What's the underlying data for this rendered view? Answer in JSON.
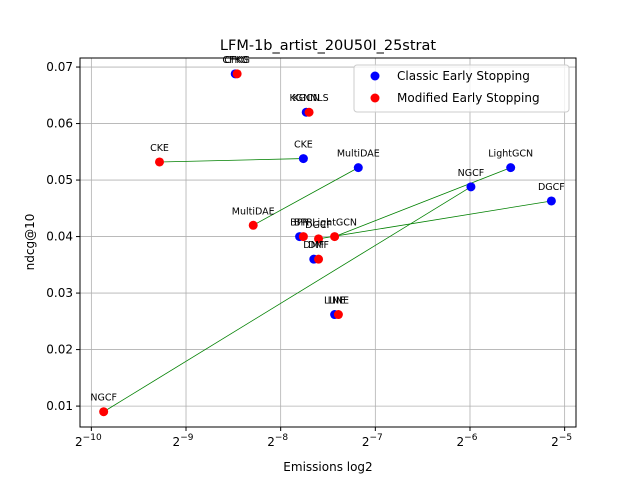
{
  "chart_data": {
    "type": "scatter",
    "title": "LFM-1b_artist_20U50I_25strat",
    "xlabel": "Emissions log2",
    "ylabel": "ndcg@10",
    "xscale": "log2",
    "xlim_exponent": [
      -10.12,
      -4.88
    ],
    "ylim": [
      0.0063,
      0.0716
    ],
    "grid": true,
    "legend_position": "top-right",
    "x_ticks": [
      {
        "base": "2",
        "exp": "−10",
        "value": -10
      },
      {
        "base": "2",
        "exp": "−9",
        "value": -9
      },
      {
        "base": "2",
        "exp": "−8",
        "value": -8
      },
      {
        "base": "2",
        "exp": "−7",
        "value": -7
      },
      {
        "base": "2",
        "exp": "−6",
        "value": -6
      },
      {
        "base": "2",
        "exp": "−5",
        "value": -5
      }
    ],
    "y_ticks": [
      {
        "label": "0.01",
        "value": 0.01
      },
      {
        "label": "0.02",
        "value": 0.02
      },
      {
        "label": "0.03",
        "value": 0.03
      },
      {
        "label": "0.04",
        "value": 0.04
      },
      {
        "label": "0.05",
        "value": 0.05
      },
      {
        "label": "0.06",
        "value": 0.06
      },
      {
        "label": "0.07",
        "value": 0.07
      }
    ],
    "series": [
      {
        "name": "Classic Early Stopping",
        "color": "#0000ff",
        "points": [
          {
            "label": "CFKG",
            "log2x": -8.48,
            "y": 0.0688
          },
          {
            "label": "KGCN",
            "log2x": -7.73,
            "y": 0.062
          },
          {
            "label": "CKE",
            "log2x": -7.76,
            "y": 0.0538
          },
          {
            "label": "MultiDAE",
            "log2x": -7.18,
            "y": 0.0522
          },
          {
            "label": "NGCF",
            "log2x": -5.99,
            "y": 0.0488
          },
          {
            "label": "LightGCN",
            "log2x": -5.57,
            "y": 0.0522
          },
          {
            "label": "DGCF",
            "log2x": -5.14,
            "y": 0.0463
          },
          {
            "label": "BPR",
            "log2x": -7.8,
            "y": 0.04
          },
          {
            "label": "DMF",
            "log2x": -7.65,
            "y": 0.036
          },
          {
            "label": "LINE",
            "log2x": -7.43,
            "y": 0.0262
          }
        ]
      },
      {
        "name": "Modified Early Stopping",
        "color": "#ff0000",
        "points": [
          {
            "label": "CFKG",
            "log2x": -8.46,
            "y": 0.0688
          },
          {
            "label": "KGNNLS",
            "log2x": -7.7,
            "y": 0.062
          },
          {
            "label": "CKE",
            "log2x": -9.28,
            "y": 0.0532
          },
          {
            "label": "MultiDAE",
            "log2x": -8.29,
            "y": 0.042
          },
          {
            "label": "NGCF",
            "log2x": -9.87,
            "y": 0.009
          },
          {
            "label": "LightGCN",
            "log2x": -7.43,
            "y": 0.04
          },
          {
            "label": "DGCF",
            "log2x": -7.6,
            "y": 0.0396
          },
          {
            "label": "BPR",
            "log2x": -7.76,
            "y": 0.04
          },
          {
            "label": "DMF",
            "log2x": -7.6,
            "y": 0.036
          },
          {
            "label": "LINE",
            "log2x": -7.39,
            "y": 0.0262
          }
        ]
      }
    ],
    "connector_color": "#008000",
    "connectors": [
      [
        -7.76,
        0.0538,
        -9.28,
        0.0532
      ],
      [
        -7.18,
        0.0522,
        -8.29,
        0.042
      ],
      [
        -5.99,
        0.0488,
        -9.87,
        0.009
      ],
      [
        -5.57,
        0.0522,
        -7.43,
        0.04
      ],
      [
        -5.14,
        0.0463,
        -7.6,
        0.0396
      ]
    ]
  }
}
